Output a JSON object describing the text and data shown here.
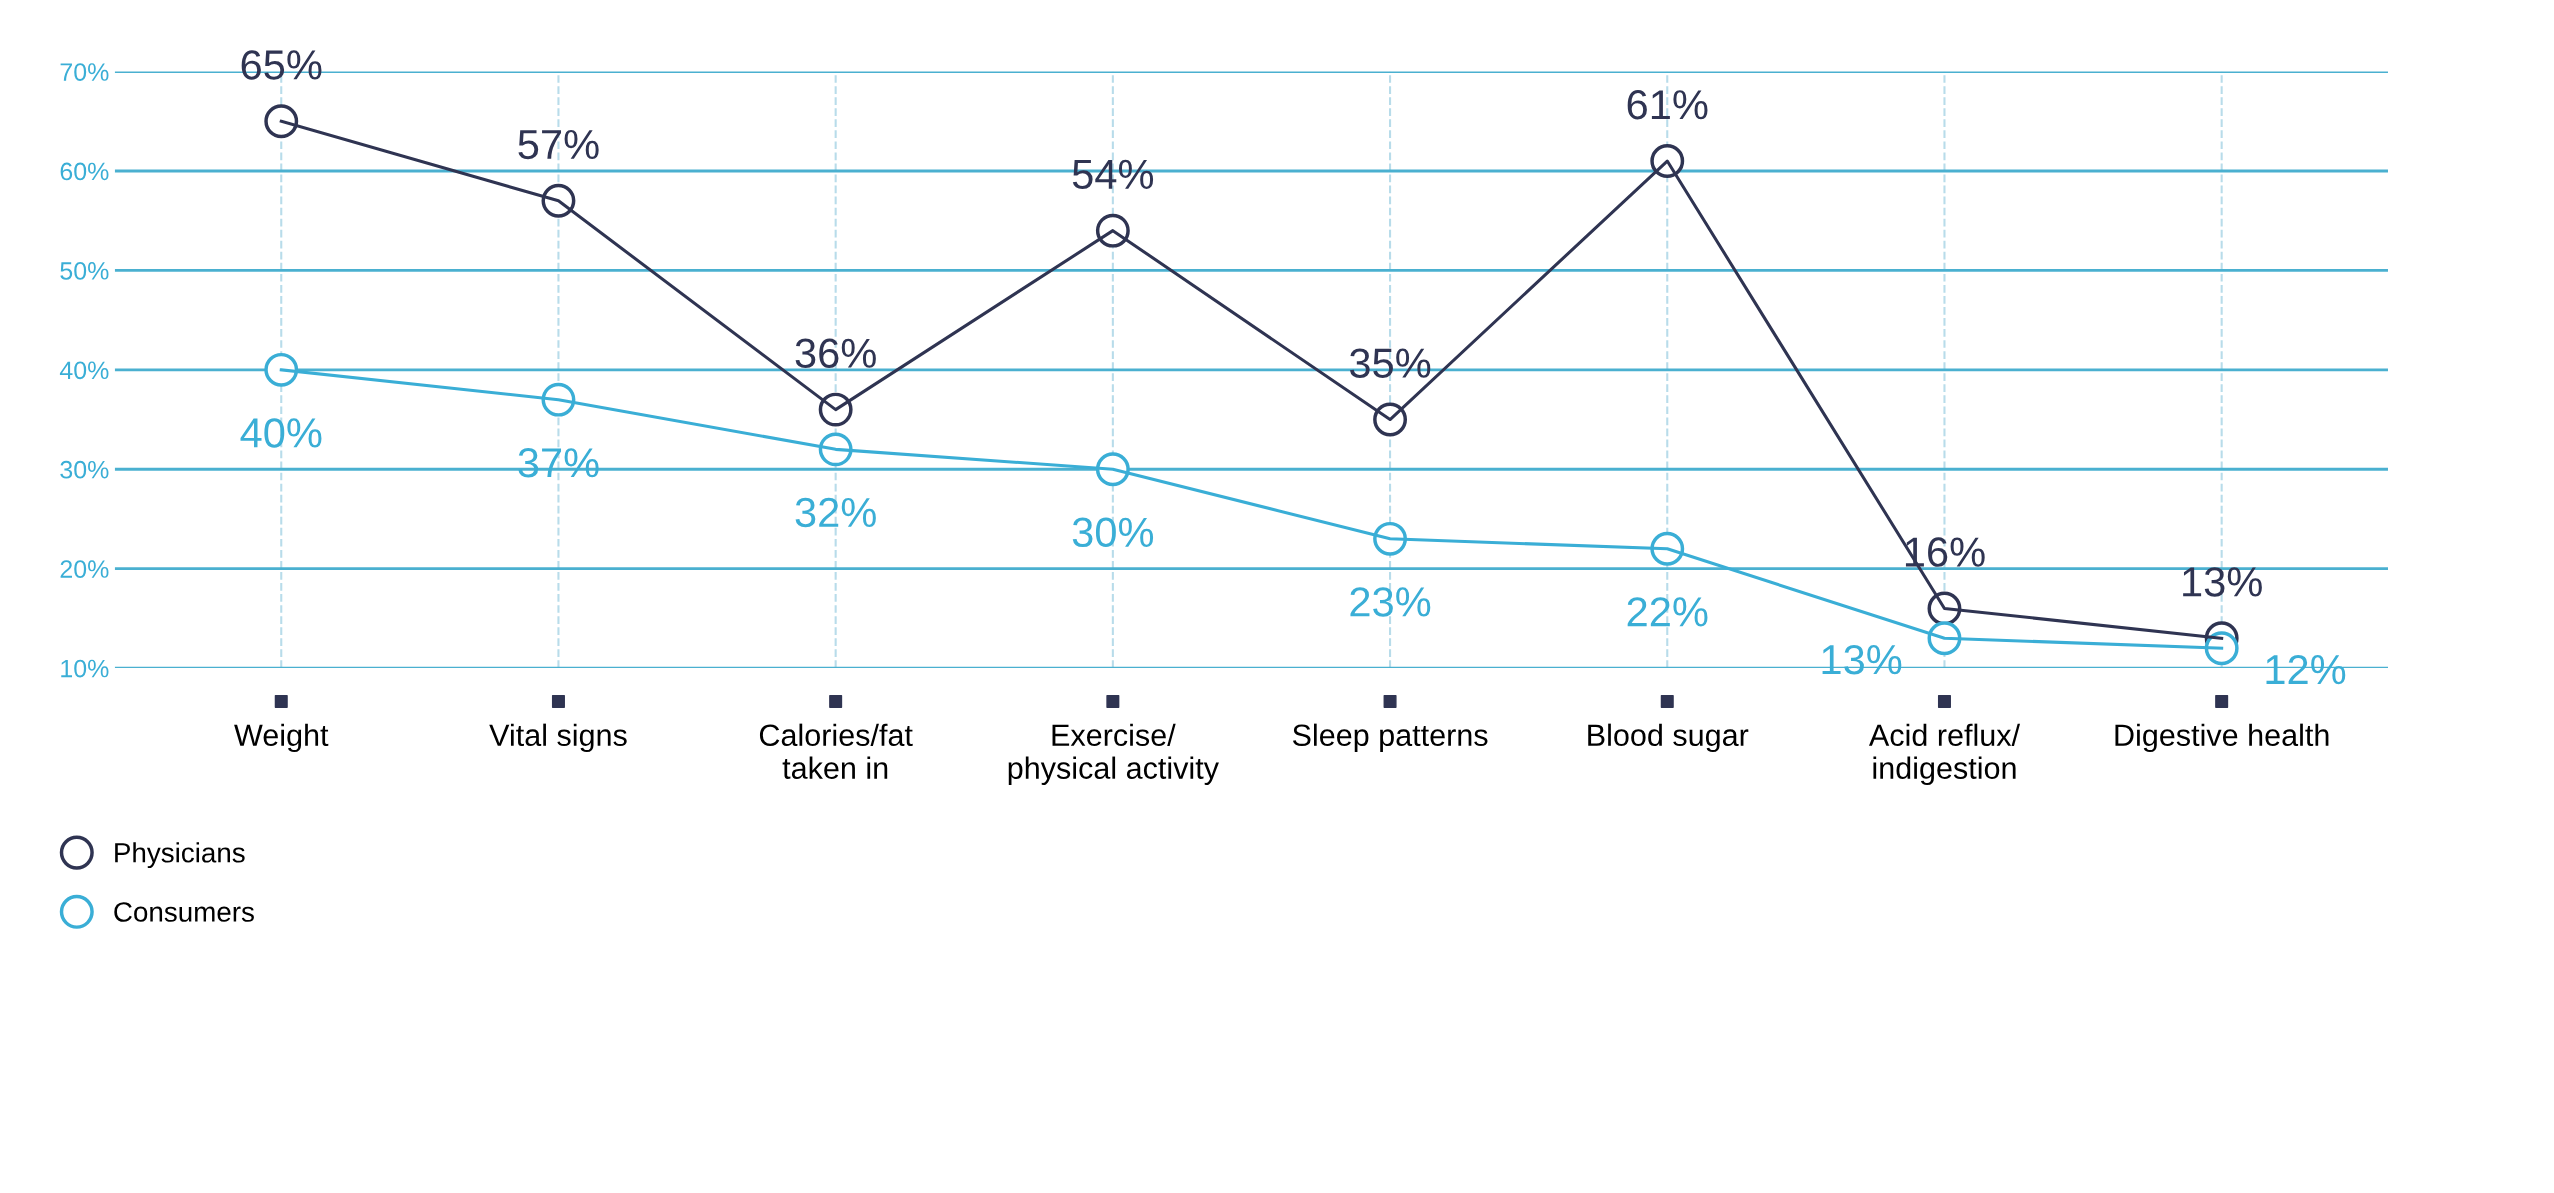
{
  "chart_data": {
    "type": "line",
    "categories": [
      "Weight",
      "Vital signs",
      "Calories/fat\ntaken in",
      "Exercise/\nphysical activity",
      "Sleep patterns",
      "Blood sugar",
      "Acid reflux/\nindigestion",
      "Digestive health"
    ],
    "series": [
      {
        "name": "Physicians",
        "color": "#2f3452",
        "values": [
          65,
          57,
          36,
          54,
          35,
          61,
          16,
          13
        ],
        "value_labels": [
          "65%",
          "57%",
          "36%",
          "54%",
          "35%",
          "61%",
          "16%",
          "13%"
        ]
      },
      {
        "name": "Consumers",
        "color": "#3aaed6",
        "values": [
          40,
          37,
          32,
          30,
          23,
          22,
          13,
          12
        ],
        "value_labels": [
          "40%",
          "37%",
          "32%",
          "30%",
          "23%",
          "22%",
          "13%",
          "12%"
        ]
      }
    ],
    "ylim": [
      10,
      70
    ],
    "yticks": [
      {
        "value": 10,
        "label": "10%"
      },
      {
        "value": 20,
        "label": "20%"
      },
      {
        "value": 30,
        "label": "30%"
      },
      {
        "value": 40,
        "label": "40%"
      },
      {
        "value": 50,
        "label": "50%"
      },
      {
        "value": 60,
        "label": "60%"
      },
      {
        "value": 70,
        "label": "70%"
      }
    ],
    "grid": true,
    "legend": "bottom left",
    "marker": "circle",
    "line_style": "solid"
  }
}
